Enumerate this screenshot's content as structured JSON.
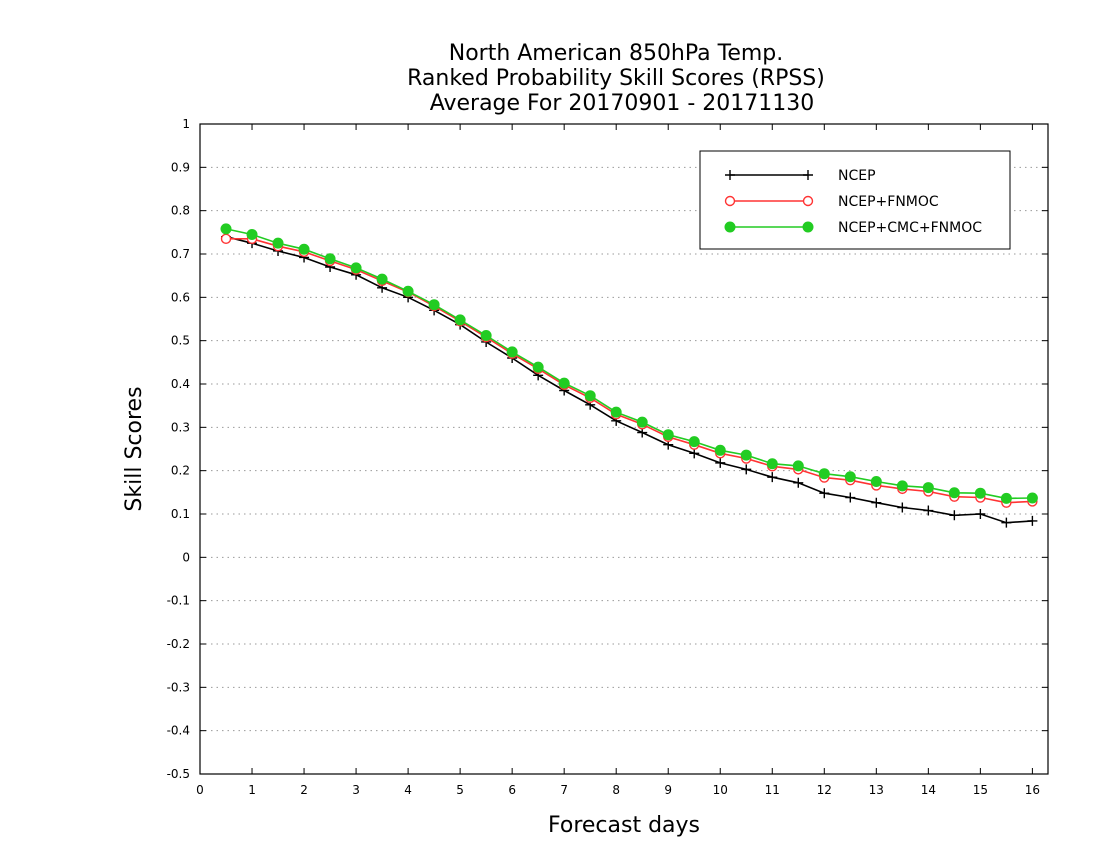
{
  "chart_data": {
    "type": "line",
    "title_lines": [
      "North American 850hPa Temp.",
      "Ranked Probability Skill Scores (RPSS)",
      "Average For 20170901 - 20171130"
    ],
    "xlabel": "Forecast days",
    "ylabel": "Skill Scores",
    "xlim": [
      0,
      16.3
    ],
    "ylim": [
      -0.5,
      1
    ],
    "x_ticks": [
      0,
      1,
      2,
      3,
      4,
      5,
      6,
      7,
      8,
      9,
      10,
      11,
      12,
      13,
      14,
      15,
      16
    ],
    "y_ticks": [
      -0.5,
      -0.4,
      -0.3,
      -0.2,
      -0.1,
      0,
      0.1,
      0.2,
      0.3,
      0.4,
      0.5,
      0.6,
      0.7,
      0.8,
      0.9,
      1
    ],
    "y_tick_labels": [
      "-0.5",
      "-0.4",
      "-0.3",
      "-0.2",
      "-0.1",
      "0",
      "0.1",
      "0.2",
      "0.3",
      "0.4",
      "0.5",
      "0.6",
      "0.7",
      "0.8",
      "0.9",
      "1"
    ],
    "grid": "horizontal dotted",
    "legend_position": "top-right",
    "x": [
      0.5,
      1,
      1.5,
      2,
      2.5,
      3,
      3.5,
      4,
      4.5,
      5,
      5.5,
      6,
      6.5,
      7,
      7.5,
      8,
      8.5,
      9,
      9.5,
      10,
      10.5,
      11,
      11.5,
      12,
      12.5,
      13,
      13.5,
      14,
      14.5,
      15,
      15.5,
      16
    ],
    "series": [
      {
        "name": "NCEP",
        "color": "#000000",
        "marker": "plus",
        "values": [
          0.74,
          0.725,
          0.707,
          0.692,
          0.67,
          0.652,
          0.622,
          0.6,
          0.57,
          0.537,
          0.497,
          0.46,
          0.42,
          0.385,
          0.352,
          0.315,
          0.288,
          0.26,
          0.24,
          0.218,
          0.203,
          0.185,
          0.172,
          0.148,
          0.138,
          0.126,
          0.115,
          0.108,
          0.097,
          0.1,
          0.08,
          0.084
        ]
      },
      {
        "name": "NCEP+FNMOC",
        "color": "#ff3333",
        "marker": "open-circle",
        "values": [
          0.735,
          0.735,
          0.718,
          0.705,
          0.684,
          0.664,
          0.638,
          0.612,
          0.58,
          0.545,
          0.508,
          0.47,
          0.435,
          0.398,
          0.368,
          0.33,
          0.307,
          0.278,
          0.26,
          0.24,
          0.228,
          0.21,
          0.203,
          0.184,
          0.178,
          0.166,
          0.158,
          0.152,
          0.14,
          0.138,
          0.126,
          0.129
        ]
      },
      {
        "name": "NCEP+CMC+FNMOC",
        "color": "#22cc22",
        "marker": "filled-circle",
        "values": [
          0.758,
          0.745,
          0.725,
          0.711,
          0.689,
          0.668,
          0.642,
          0.614,
          0.583,
          0.548,
          0.512,
          0.474,
          0.439,
          0.402,
          0.373,
          0.335,
          0.312,
          0.283,
          0.267,
          0.247,
          0.236,
          0.216,
          0.211,
          0.193,
          0.186,
          0.175,
          0.165,
          0.161,
          0.149,
          0.148,
          0.136,
          0.137
        ]
      }
    ]
  }
}
